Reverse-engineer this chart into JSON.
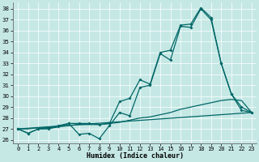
{
  "xlabel": "Humidex (Indice chaleur)",
  "xlim": [
    -0.5,
    23.5
  ],
  "ylim": [
    25.7,
    38.6
  ],
  "yticks": [
    26,
    27,
    28,
    29,
    30,
    31,
    32,
    33,
    34,
    35,
    36,
    37,
    38
  ],
  "xticks": [
    0,
    1,
    2,
    3,
    4,
    5,
    6,
    7,
    8,
    9,
    10,
    11,
    12,
    13,
    14,
    15,
    16,
    17,
    18,
    19,
    20,
    21,
    22,
    23
  ],
  "background_color": "#c5e8e5",
  "line_color": "#006666",
  "line1_x": [
    0,
    1,
    2,
    3,
    4,
    5,
    6,
    7,
    8,
    9,
    10,
    11,
    12,
    13,
    14,
    15,
    16,
    17,
    18,
    19,
    20,
    21,
    22,
    23
  ],
  "line1_y": [
    27.0,
    26.6,
    27.0,
    27.0,
    27.2,
    27.5,
    26.5,
    26.6,
    26.1,
    27.3,
    28.5,
    28.2,
    30.8,
    31.0,
    33.9,
    33.3,
    36.4,
    36.3,
    38.0,
    37.0,
    33.0,
    30.2,
    29.0,
    28.5
  ],
  "line2_x": [
    0,
    1,
    2,
    3,
    4,
    5,
    6,
    7,
    8,
    9,
    10,
    11,
    12,
    13,
    14,
    15,
    16,
    17,
    18,
    19,
    20,
    21,
    22,
    23
  ],
  "line2_y": [
    27.0,
    26.6,
    27.0,
    27.1,
    27.3,
    27.5,
    27.5,
    27.5,
    27.4,
    27.5,
    29.5,
    29.8,
    31.5,
    31.1,
    34.0,
    34.2,
    36.5,
    36.6,
    38.1,
    37.2,
    33.0,
    30.2,
    28.7,
    28.5
  ],
  "line3_x": [
    0,
    1,
    2,
    3,
    4,
    5,
    6,
    7,
    8,
    9,
    10,
    11,
    12,
    13,
    14,
    15,
    16,
    17,
    18,
    19,
    20,
    21,
    22,
    23
  ],
  "line3_y": [
    27.0,
    27.0,
    27.1,
    27.1,
    27.2,
    27.3,
    27.4,
    27.4,
    27.4,
    27.5,
    27.6,
    27.8,
    28.0,
    28.1,
    28.3,
    28.5,
    28.8,
    29.0,
    29.2,
    29.4,
    29.6,
    29.7,
    29.6,
    28.5
  ],
  "line4_x": [
    0,
    23
  ],
  "line4_y": [
    27.0,
    28.5
  ]
}
